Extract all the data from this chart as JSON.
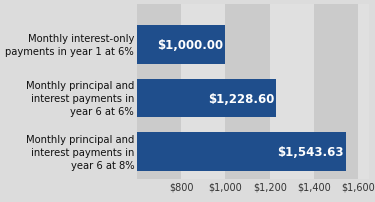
{
  "categories": [
    "Monthly interest-only\npayments in year 1 at 6%",
    "Monthly principal and\ninterest payments in\nyear 6 at 6%",
    "Monthly principal and\ninterest payments in\nyear 6 at 8%"
  ],
  "values": [
    1000.0,
    1228.6,
    1543.63
  ],
  "labels": [
    "$1,000.00",
    "$1,228.60",
    "$1,543.63"
  ],
  "bar_color": "#1F4E8C",
  "background_color": "#DCDCDC",
  "stripe_dark": "#CBCBCB",
  "stripe_light": "#E0E0E0",
  "text_color": "#FFFFFF",
  "label_color": "#111111",
  "xlim_min": 600,
  "xlim_max": 1650,
  "xticks": [
    800,
    1000,
    1200,
    1400,
    1600
  ],
  "xticklabels": [
    "$800",
    "$1,000",
    "$1,200",
    "$1,400",
    "$1,600"
  ],
  "bar_height": 0.72,
  "label_fontsize": 7.2,
  "value_fontsize": 8.5,
  "tick_fontsize": 7.0
}
